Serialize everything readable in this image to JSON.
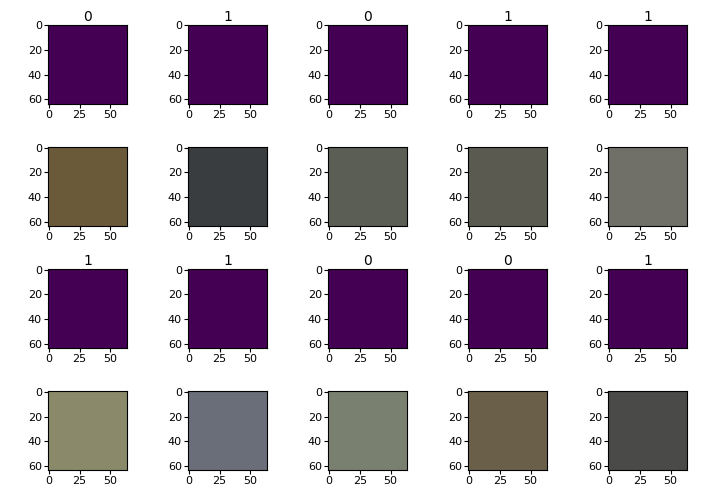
{
  "chart_data": [
    {
      "type": "image",
      "title": "0",
      "color": "#440154",
      "xlim": [
        -0.5,
        63.5
      ],
      "ylim": [
        63.5,
        -0.5
      ],
      "xticks": [
        0,
        25,
        50
      ],
      "yticks": [
        0,
        20,
        40,
        60
      ]
    },
    {
      "type": "image",
      "title": "1",
      "color": "#440154",
      "xlim": [
        -0.5,
        63.5
      ],
      "ylim": [
        63.5,
        -0.5
      ],
      "xticks": [
        0,
        25,
        50
      ],
      "yticks": [
        0,
        20,
        40,
        60
      ]
    },
    {
      "type": "image",
      "title": "0",
      "color": "#440154",
      "xlim": [
        -0.5,
        63.5
      ],
      "ylim": [
        63.5,
        -0.5
      ],
      "xticks": [
        0,
        25,
        50
      ],
      "yticks": [
        0,
        20,
        40,
        60
      ]
    },
    {
      "type": "image",
      "title": "1",
      "color": "#440154",
      "xlim": [
        -0.5,
        63.5
      ],
      "ylim": [
        63.5,
        -0.5
      ],
      "xticks": [
        0,
        25,
        50
      ],
      "yticks": [
        0,
        20,
        40,
        60
      ]
    },
    {
      "type": "image",
      "title": "1",
      "color": "#440154",
      "xlim": [
        -0.5,
        63.5
      ],
      "ylim": [
        63.5,
        -0.5
      ],
      "xticks": [
        0,
        25,
        50
      ],
      "yticks": [
        0,
        20,
        40,
        60
      ]
    },
    {
      "type": "image",
      "color": "#6b5a3a",
      "xlim": [
        -0.5,
        63.5
      ],
      "ylim": [
        63.5,
        -0.5
      ],
      "xticks": [
        0,
        25,
        50
      ],
      "yticks": [
        0,
        20,
        40,
        60
      ]
    },
    {
      "type": "image",
      "color": "#3a3d40",
      "xlim": [
        -0.5,
        63.5
      ],
      "ylim": [
        63.5,
        -0.5
      ],
      "xticks": [
        0,
        25,
        50
      ],
      "yticks": [
        0,
        20,
        40,
        60
      ]
    },
    {
      "type": "image",
      "color": "#5a5e55",
      "xlim": [
        -0.5,
        63.5
      ],
      "ylim": [
        63.5,
        -0.5
      ],
      "xticks": [
        0,
        25,
        50
      ],
      "yticks": [
        0,
        20,
        40,
        60
      ]
    },
    {
      "type": "image",
      "color": "#5a5a50",
      "xlim": [
        -0.5,
        63.5
      ],
      "ylim": [
        63.5,
        -0.5
      ],
      "xticks": [
        0,
        25,
        50
      ],
      "yticks": [
        0,
        20,
        40,
        60
      ]
    },
    {
      "type": "image",
      "color": "#707068",
      "xlim": [
        -0.5,
        63.5
      ],
      "ylim": [
        63.5,
        -0.5
      ],
      "xticks": [
        0,
        25,
        50
      ],
      "yticks": [
        0,
        20,
        40,
        60
      ]
    },
    {
      "type": "image",
      "title": "1",
      "color": "#440154",
      "xlim": [
        -0.5,
        63.5
      ],
      "ylim": [
        63.5,
        -0.5
      ],
      "xticks": [
        0,
        25,
        50
      ],
      "yticks": [
        0,
        20,
        40,
        60
      ]
    },
    {
      "type": "image",
      "title": "1",
      "color": "#440154",
      "xlim": [
        -0.5,
        63.5
      ],
      "ylim": [
        63.5,
        -0.5
      ],
      "xticks": [
        0,
        25,
        50
      ],
      "yticks": [
        0,
        20,
        40,
        60
      ]
    },
    {
      "type": "image",
      "title": "0",
      "color": "#440154",
      "xlim": [
        -0.5,
        63.5
      ],
      "ylim": [
        63.5,
        -0.5
      ],
      "xticks": [
        0,
        25,
        50
      ],
      "yticks": [
        0,
        20,
        40,
        60
      ]
    },
    {
      "type": "image",
      "title": "0",
      "color": "#440154",
      "xlim": [
        -0.5,
        63.5
      ],
      "ylim": [
        63.5,
        -0.5
      ],
      "xticks": [
        0,
        25,
        50
      ],
      "yticks": [
        0,
        20,
        40,
        60
      ]
    },
    {
      "type": "image",
      "title": "1",
      "color": "#440154",
      "xlim": [
        -0.5,
        63.5
      ],
      "ylim": [
        63.5,
        -0.5
      ],
      "xticks": [
        0,
        25,
        50
      ],
      "yticks": [
        0,
        20,
        40,
        60
      ]
    },
    {
      "type": "image",
      "color": "#8a8a6a",
      "xlim": [
        -0.5,
        63.5
      ],
      "ylim": [
        63.5,
        -0.5
      ],
      "xticks": [
        0,
        25,
        50
      ],
      "yticks": [
        0,
        20,
        40,
        60
      ]
    },
    {
      "type": "image",
      "color": "#6a6e78",
      "xlim": [
        -0.5,
        63.5
      ],
      "ylim": [
        63.5,
        -0.5
      ],
      "xticks": [
        0,
        25,
        50
      ],
      "yticks": [
        0,
        20,
        40,
        60
      ]
    },
    {
      "type": "image",
      "color": "#7a8070",
      "xlim": [
        -0.5,
        63.5
      ],
      "ylim": [
        63.5,
        -0.5
      ],
      "xticks": [
        0,
        25,
        50
      ],
      "yticks": [
        0,
        20,
        40,
        60
      ]
    },
    {
      "type": "image",
      "color": "#6a604a",
      "xlim": [
        -0.5,
        63.5
      ],
      "ylim": [
        63.5,
        -0.5
      ],
      "xticks": [
        0,
        25,
        50
      ],
      "yticks": [
        0,
        20,
        40,
        60
      ]
    },
    {
      "type": "image",
      "color": "#4a4a48",
      "xlim": [
        -0.5,
        63.5
      ],
      "ylim": [
        63.5,
        -0.5
      ],
      "xticks": [
        0,
        25,
        50
      ],
      "yticks": [
        0,
        20,
        40,
        60
      ]
    }
  ]
}
